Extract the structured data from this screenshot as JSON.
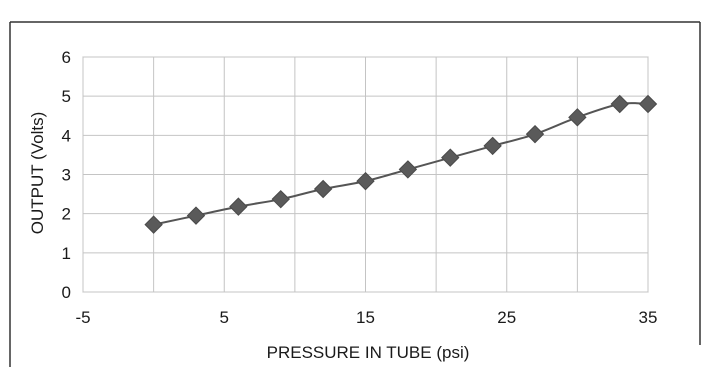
{
  "chart_data": {
    "type": "line",
    "xlabel": "PRESSURE IN TUBE (psi)",
    "ylabel": "OUTPUT (Volts)",
    "xlim": [
      -5,
      35
    ],
    "ylim": [
      0,
      6
    ],
    "x_ticks": [
      -5,
      5,
      15,
      25,
      35
    ],
    "y_ticks": [
      0,
      1,
      2,
      3,
      4,
      5,
      6
    ],
    "x_grid_step": 5,
    "grid": true,
    "legend": "none",
    "marker": "diamond",
    "line_color": "#555555",
    "marker_color": "#5a5a5a",
    "series": [
      {
        "x": [
          0,
          3,
          6,
          9,
          12,
          15,
          18,
          21,
          24,
          27,
          30,
          33,
          35
        ],
        "y": [
          1.72,
          1.95,
          2.18,
          2.37,
          2.63,
          2.83,
          3.13,
          3.43,
          3.73,
          4.03,
          4.46,
          4.8,
          4.8
        ]
      }
    ]
  }
}
